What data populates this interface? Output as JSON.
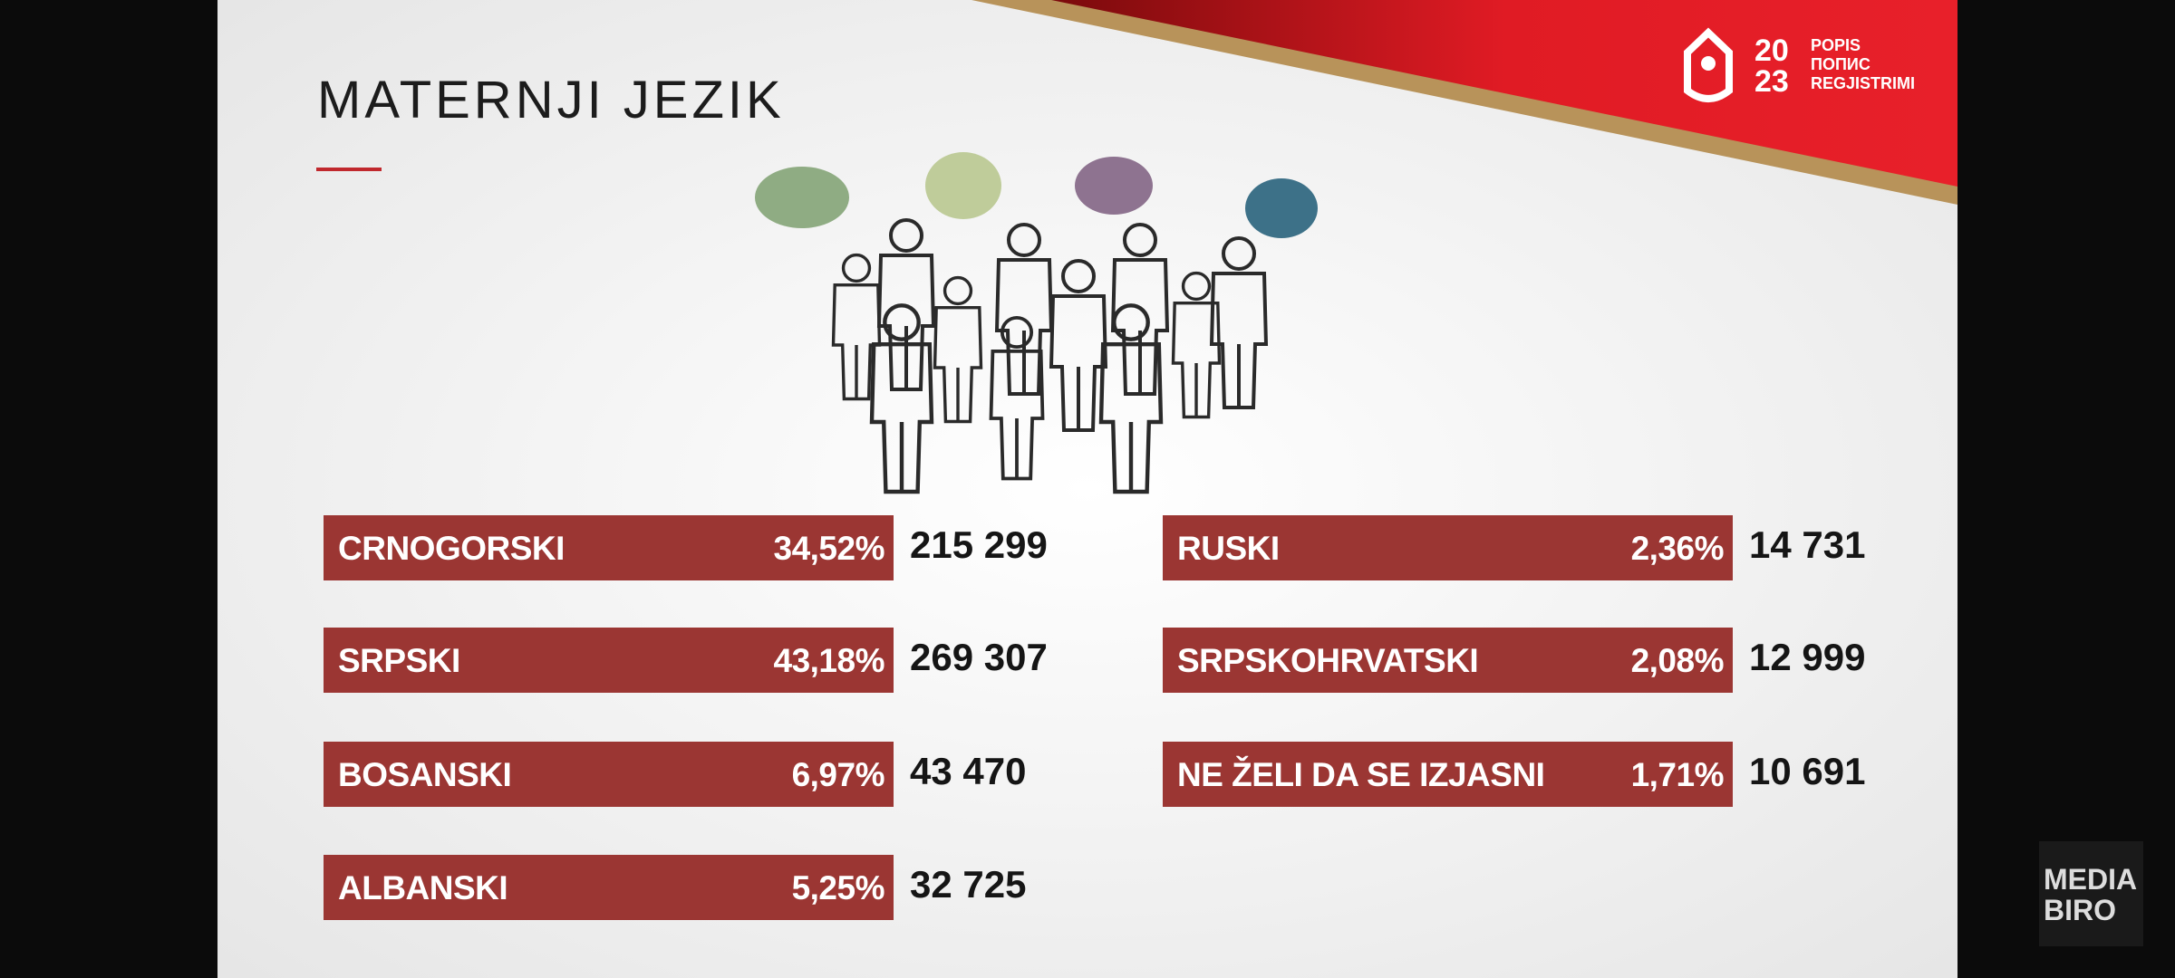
{
  "header": {
    "title": "MATERNJI JEZIK"
  },
  "logo": {
    "year_top": "20",
    "year_bottom": "23",
    "lines": [
      "POPIS",
      "ПОПИС",
      "REGJISTRIMI"
    ]
  },
  "columns": [
    [
      {
        "label": "CRNOGORSKI",
        "percent": "34,52%",
        "count": "215 299"
      },
      {
        "label": "SRPSKI",
        "percent": "43,18%",
        "count": "269 307"
      },
      {
        "label": "BOSANSKI",
        "percent": "6,97%",
        "count": "43 470"
      },
      {
        "label": "ALBANSKI",
        "percent": "5,25%",
        "count": "32 725"
      }
    ],
    [
      {
        "label": "RUSKI",
        "percent": "2,36%",
        "count": "14 731"
      },
      {
        "label": "SRPSKOHRVATSKI",
        "percent": "2,08%",
        "count": "12 999"
      },
      {
        "label": "NE ŽELI DA SE IZJASNI",
        "percent": "1,71%",
        "count": "10 691"
      }
    ]
  ],
  "watermark": {
    "lines": [
      "MEDIA",
      "BIRO"
    ]
  }
}
